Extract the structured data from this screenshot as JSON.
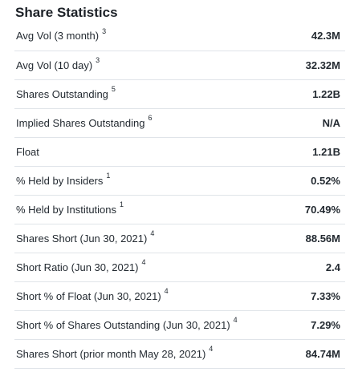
{
  "section": {
    "title": "Share Statistics"
  },
  "rows": [
    {
      "label": "Avg Vol (3 month)",
      "note": "3",
      "value": "42.3M"
    },
    {
      "label": "Avg Vol (10 day)",
      "note": "3",
      "value": "32.32M"
    },
    {
      "label": "Shares Outstanding",
      "note": "5",
      "value": "1.22B"
    },
    {
      "label": "Implied Shares Outstanding",
      "note": "6",
      "value": "N/A"
    },
    {
      "label": "Float",
      "note": "",
      "value": "1.21B"
    },
    {
      "label": "% Held by Insiders",
      "note": "1",
      "value": "0.52%"
    },
    {
      "label": "% Held by Institutions",
      "note": "1",
      "value": "70.49%"
    },
    {
      "label": "Shares Short (Jun 30, 2021)",
      "note": "4",
      "value": "88.56M"
    },
    {
      "label": "Short Ratio (Jun 30, 2021)",
      "note": "4",
      "value": "2.4"
    },
    {
      "label": "Short % of Float (Jun 30, 2021)",
      "note": "4",
      "value": "7.33%"
    },
    {
      "label": "Short % of Shares Outstanding (Jun 30, 2021)",
      "note": "4",
      "value": "7.29%"
    },
    {
      "label": "Shares Short (prior month May 28, 2021)",
      "note": "4",
      "value": "84.74M"
    }
  ]
}
